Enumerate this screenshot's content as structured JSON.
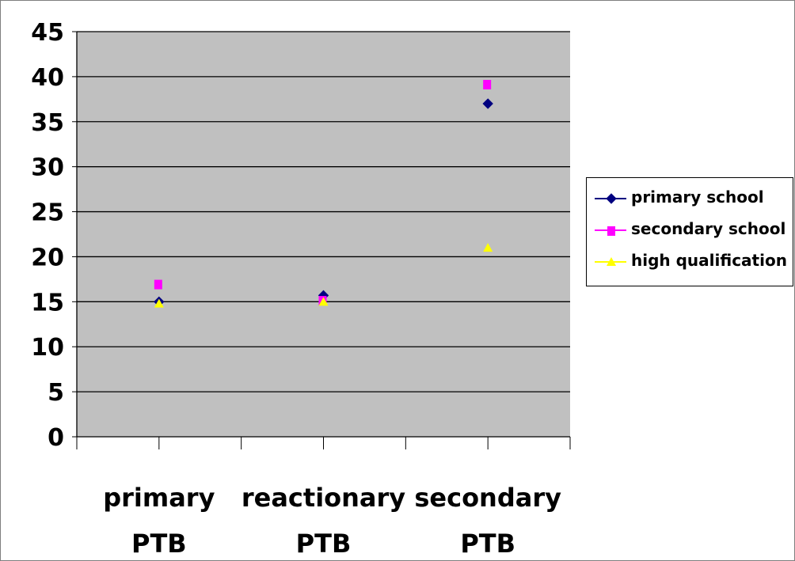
{
  "chart_data": {
    "type": "scatter",
    "categories": [
      "primary PTB",
      "reactionary PTB",
      "secondary PTB"
    ],
    "category_lines": [
      [
        "primary",
        "PTB"
      ],
      [
        "reactionary",
        "PTB"
      ],
      [
        "secondary",
        "PTB"
      ]
    ],
    "ylim": [
      0,
      45
    ],
    "yticks": [
      "0",
      "5",
      "10",
      "15",
      "20",
      "25",
      "30",
      "35",
      "40",
      "45"
    ],
    "grid": true,
    "legend_position": "right",
    "plot_background": "#c0c0c0",
    "series": [
      {
        "name": "primary school",
        "values": [
          15,
          15.7,
          37
        ],
        "marker": "diamond",
        "color": "#000080"
      },
      {
        "name": "secondary school",
        "values": [
          17,
          15.2,
          39.2
        ],
        "marker": "square",
        "color": "#ff00ff"
      },
      {
        "name": "high qualification",
        "values": [
          14.8,
          15,
          21
        ],
        "marker": "triangle",
        "color": "#ffff00"
      }
    ]
  }
}
